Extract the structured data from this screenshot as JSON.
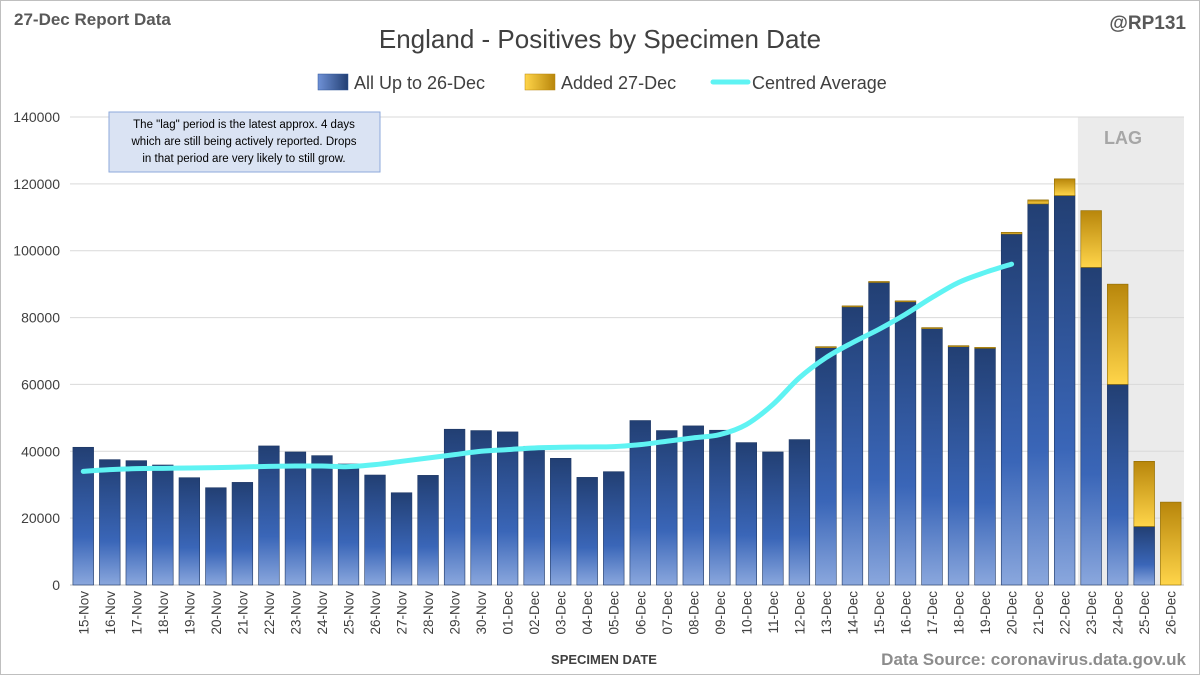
{
  "header": {
    "report_label": "27-Dec Report Data",
    "handle": "@RP131"
  },
  "footer": {
    "source": "Data Source: coronavirus.data.gov.uk"
  },
  "annotations": {
    "lag_label": "LAG",
    "note_lines": [
      "The \"lag\" period is the latest approx. 4 days",
      "which are still being actively reported.  Drops",
      "in that period are very likely to still grow."
    ]
  },
  "colors": {
    "base": "#2f5597",
    "added": "#d4a017",
    "average": "#5ff3f3",
    "lag_shade": "#ebebeb"
  },
  "chart_data": {
    "type": "bar",
    "title": "England - Positives by Specimen Date",
    "xlabel": "SPECIMEN DATE",
    "ylabel": "",
    "ylim": [
      0,
      140000
    ],
    "yticks": [
      0,
      20000,
      40000,
      60000,
      80000,
      100000,
      120000,
      140000
    ],
    "legend": [
      "All Up to 26-Dec",
      "Added 27-Dec",
      "Centred Average"
    ],
    "legend_position": "top",
    "stacked": true,
    "categories": [
      "15-Nov",
      "16-Nov",
      "17-Nov",
      "18-Nov",
      "19-Nov",
      "20-Nov",
      "21-Nov",
      "22-Nov",
      "23-Nov",
      "24-Nov",
      "25-Nov",
      "26-Nov",
      "27-Nov",
      "28-Nov",
      "29-Nov",
      "30-Nov",
      "01-Dec",
      "02-Dec",
      "03-Dec",
      "04-Dec",
      "05-Dec",
      "06-Dec",
      "07-Dec",
      "08-Dec",
      "09-Dec",
      "10-Dec",
      "11-Dec",
      "12-Dec",
      "13-Dec",
      "14-Dec",
      "15-Dec",
      "16-Dec",
      "17-Dec",
      "18-Dec",
      "19-Dec",
      "20-Dec",
      "21-Dec",
      "22-Dec",
      "23-Dec",
      "24-Dec",
      "25-Dec",
      "26-Dec"
    ],
    "series": [
      {
        "name": "All Up to 26-Dec",
        "values": [
          41200,
          37500,
          37200,
          35900,
          32100,
          29100,
          30700,
          41600,
          39800,
          38700,
          36200,
          32900,
          27600,
          32800,
          46600,
          46200,
          45800,
          41500,
          37900,
          32200,
          33900,
          49200,
          46200,
          47600,
          46300,
          42600,
          39800,
          43500,
          71000,
          83200,
          90500,
          84700,
          76700,
          71300,
          70800,
          105000,
          114000,
          116500,
          95000,
          60000,
          17500,
          0
        ]
      },
      {
        "name": "Added 27-Dec",
        "values": [
          0,
          0,
          0,
          0,
          0,
          0,
          0,
          0,
          0,
          0,
          0,
          0,
          0,
          0,
          0,
          0,
          0,
          0,
          0,
          0,
          0,
          0,
          0,
          0,
          0,
          0,
          0,
          0,
          300,
          300,
          300,
          300,
          300,
          300,
          300,
          500,
          1200,
          5000,
          17000,
          30000,
          19500,
          24800
        ]
      },
      {
        "name": "Centred Average",
        "type": "line",
        "values": [
          34000,
          34500,
          34800,
          34900,
          35000,
          35100,
          35300,
          35500,
          35600,
          35600,
          35400,
          36000,
          37000,
          38000,
          39000,
          40000,
          40500,
          41000,
          41200,
          41300,
          41400,
          42000,
          43000,
          44000,
          45000,
          48000,
          54000,
          62000,
          68000,
          72500,
          76500,
          81000,
          86000,
          90500,
          93500,
          96000,
          null,
          null,
          null,
          null,
          null,
          null
        ]
      }
    ],
    "lag_categories": [
      "23-Dec",
      "24-Dec",
      "25-Dec",
      "26-Dec"
    ]
  }
}
